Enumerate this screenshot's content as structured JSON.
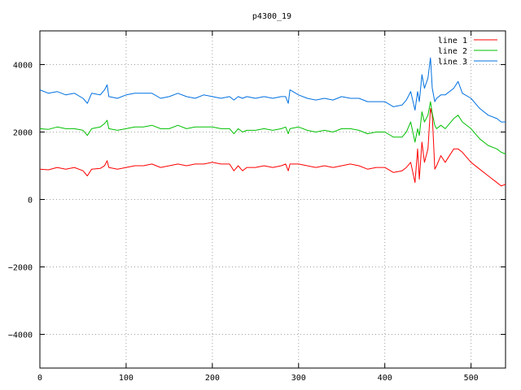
{
  "chart_data": {
    "type": "line",
    "title": "p4300_19",
    "xlabel": "",
    "ylabel": "",
    "xlim": [
      0,
      540
    ],
    "ylim": [
      -5000,
      5000
    ],
    "xticks": [
      0,
      100,
      200,
      300,
      400,
      500
    ],
    "xtick_labels": [
      "0",
      "100",
      "200",
      "300",
      "400",
      "500"
    ],
    "yticks": [
      -4000,
      -2000,
      0,
      2000,
      4000
    ],
    "ytick_labels": [
      "−4000",
      "−2000",
      "0",
      "2000",
      "4000"
    ],
    "grid": true,
    "legend": "top-right",
    "x": [
      0,
      10,
      20,
      30,
      40,
      50,
      55,
      60,
      70,
      75,
      78,
      80,
      90,
      100,
      110,
      120,
      130,
      140,
      150,
      160,
      170,
      180,
      190,
      200,
      210,
      220,
      225,
      230,
      235,
      240,
      250,
      260,
      270,
      280,
      285,
      288,
      290,
      300,
      310,
      320,
      330,
      340,
      350,
      360,
      370,
      380,
      390,
      400,
      410,
      420,
      425,
      430,
      435,
      438,
      440,
      443,
      446,
      450,
      453,
      455,
      458,
      460,
      465,
      470,
      480,
      485,
      490,
      500,
      510,
      520,
      530,
      535,
      540
    ],
    "series": [
      {
        "name": "line 1",
        "color": "#ff0000",
        "values": [
          900,
          880,
          950,
          900,
          950,
          850,
          700,
          900,
          920,
          1000,
          1150,
          950,
          900,
          950,
          1000,
          1000,
          1050,
          950,
          1000,
          1050,
          1000,
          1050,
          1050,
          1100,
          1050,
          1050,
          850,
          1000,
          850,
          950,
          950,
          1000,
          950,
          1000,
          1050,
          850,
          1050,
          1050,
          1000,
          950,
          1000,
          950,
          1000,
          1050,
          1000,
          900,
          950,
          950,
          800,
          850,
          950,
          1100,
          500,
          1500,
          600,
          1700,
          1100,
          1500,
          2700,
          2500,
          900,
          1000,
          1300,
          1100,
          1500,
          1500,
          1400,
          1100,
          900,
          700,
          500,
          400,
          450
        ]
      },
      {
        "name": "line 2",
        "color": "#00c000",
        "values": [
          2100,
          2080,
          2150,
          2100,
          2100,
          2050,
          1900,
          2100,
          2150,
          2250,
          2350,
          2100,
          2050,
          2100,
          2150,
          2150,
          2200,
          2100,
          2100,
          2200,
          2100,
          2150,
          2150,
          2150,
          2100,
          2100,
          1950,
          2100,
          2000,
          2050,
          2050,
          2100,
          2050,
          2100,
          2150,
          1950,
          2100,
          2150,
          2050,
          2000,
          2050,
          2000,
          2100,
          2100,
          2050,
          1950,
          2000,
          2000,
          1850,
          1850,
          2000,
          2300,
          1700,
          2100,
          1900,
          2600,
          2300,
          2500,
          2900,
          2550,
          2200,
          2100,
          2200,
          2100,
          2400,
          2500,
          2300,
          2100,
          1800,
          1600,
          1500,
          1400,
          1350
        ]
      },
      {
        "name": "line 3",
        "color": "#0070e0",
        "values": [
          3250,
          3150,
          3200,
          3100,
          3150,
          3000,
          2850,
          3150,
          3100,
          3250,
          3400,
          3050,
          3000,
          3100,
          3150,
          3150,
          3150,
          3000,
          3050,
          3150,
          3050,
          3000,
          3100,
          3050,
          3000,
          3050,
          2950,
          3050,
          3000,
          3050,
          3000,
          3050,
          3000,
          3050,
          3050,
          2850,
          3250,
          3100,
          3000,
          2950,
          3000,
          2950,
          3050,
          3000,
          3000,
          2900,
          2900,
          2900,
          2750,
          2800,
          2950,
          3200,
          2650,
          3200,
          2900,
          3700,
          3300,
          3600,
          4200,
          3300,
          2900,
          3000,
          3100,
          3100,
          3300,
          3500,
          3150,
          3000,
          2700,
          2500,
          2400,
          2300,
          2300
        ]
      }
    ]
  }
}
